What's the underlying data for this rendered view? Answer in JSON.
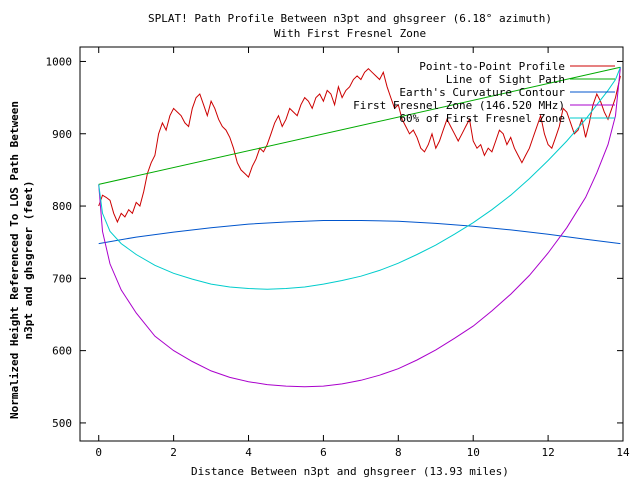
{
  "chart_data": {
    "type": "line",
    "title": "SPLAT! Path Profile Between n3pt and ghsgreer (6.18° azimuth)",
    "subtitle": "With First Fresnel Zone",
    "xlabel": "Distance Between n3pt and ghsgreer (13.93 miles)",
    "ylabel": "Normalized Height Referenced To LOS Path Between",
    "ylabel2": "n3pt and ghsgreer (feet)",
    "xlim": [
      -0.5,
      14
    ],
    "ylim": [
      475,
      1020
    ],
    "xticks": [
      "0",
      "2",
      "4",
      "6",
      "8",
      "10",
      "12",
      "14"
    ],
    "yticks": [
      "500",
      "600",
      "700",
      "800",
      "900",
      "1000"
    ],
    "xtick_values": [
      0,
      2,
      4,
      6,
      8,
      10,
      12,
      14
    ],
    "ytick_values": [
      500,
      600,
      700,
      800,
      900,
      1000
    ],
    "legend_position": "top-right",
    "grid": false,
    "series": [
      {
        "name": "Point-to-Point Profile",
        "color": "#cc0000",
        "x": [
          0,
          0.1,
          0.2,
          0.3,
          0.4,
          0.5,
          0.6,
          0.7,
          0.8,
          0.9,
          1.0,
          1.1,
          1.2,
          1.3,
          1.4,
          1.5,
          1.6,
          1.7,
          1.8,
          1.9,
          2.0,
          2.1,
          2.2,
          2.3,
          2.4,
          2.5,
          2.6,
          2.7,
          2.8,
          2.9,
          3.0,
          3.1,
          3.2,
          3.3,
          3.4,
          3.5,
          3.6,
          3.7,
          3.8,
          3.9,
          4.0,
          4.1,
          4.2,
          4.3,
          4.4,
          4.5,
          4.6,
          4.7,
          4.8,
          4.9,
          5.0,
          5.1,
          5.2,
          5.3,
          5.4,
          5.5,
          5.6,
          5.7,
          5.8,
          5.9,
          6.0,
          6.1,
          6.2,
          6.3,
          6.4,
          6.5,
          6.6,
          6.7,
          6.8,
          6.9,
          7.0,
          7.1,
          7.2,
          7.3,
          7.4,
          7.5,
          7.6,
          7.7,
          7.8,
          7.9,
          8.0,
          8.1,
          8.2,
          8.3,
          8.4,
          8.5,
          8.6,
          8.7,
          8.8,
          8.9,
          9.0,
          9.1,
          9.2,
          9.3,
          9.4,
          9.5,
          9.6,
          9.7,
          9.8,
          9.9,
          10.0,
          10.1,
          10.2,
          10.3,
          10.4,
          10.5,
          10.6,
          10.7,
          10.8,
          10.9,
          11.0,
          11.1,
          11.2,
          11.3,
          11.4,
          11.5,
          11.6,
          11.7,
          11.8,
          11.9,
          12.0,
          12.1,
          12.2,
          12.3,
          12.4,
          12.5,
          12.6,
          12.7,
          12.8,
          12.9,
          13.0,
          13.1,
          13.2,
          13.3,
          13.4,
          13.5,
          13.6,
          13.7,
          13.8,
          13.93
        ],
        "values": [
          800,
          815,
          812,
          808,
          790,
          778,
          790,
          785,
          795,
          790,
          805,
          800,
          820,
          845,
          860,
          870,
          900,
          915,
          905,
          925,
          935,
          930,
          925,
          915,
          910,
          935,
          950,
          955,
          940,
          925,
          945,
          935,
          920,
          910,
          905,
          895,
          880,
          860,
          850,
          845,
          840,
          855,
          865,
          880,
          875,
          885,
          900,
          915,
          925,
          910,
          920,
          935,
          930,
          925,
          940,
          950,
          945,
          935,
          950,
          955,
          945,
          960,
          955,
          940,
          965,
          950,
          960,
          965,
          975,
          980,
          975,
          985,
          990,
          985,
          980,
          975,
          985,
          965,
          950,
          935,
          940,
          920,
          910,
          900,
          905,
          895,
          880,
          875,
          885,
          900,
          880,
          890,
          905,
          920,
          910,
          900,
          890,
          900,
          910,
          920,
          890,
          880,
          885,
          870,
          880,
          875,
          890,
          905,
          900,
          885,
          895,
          880,
          870,
          860,
          870,
          880,
          895,
          910,
          925,
          900,
          885,
          880,
          895,
          910,
          935,
          930,
          915,
          900,
          905,
          920,
          895,
          915,
          940,
          955,
          945,
          930,
          920,
          935,
          950,
          980
        ]
      },
      {
        "name": "Line of Sight Path",
        "color": "#00aa00",
        "x": [
          0,
          13.93
        ],
        "values": [
          830,
          992
        ]
      },
      {
        "name": "Earth's Curvature Contour",
        "color": "#0055cc",
        "x": [
          0,
          1,
          2,
          3,
          4,
          5,
          6,
          7,
          8,
          9,
          10,
          11,
          12,
          13,
          13.93
        ],
        "values": [
          748,
          757,
          764,
          770,
          775,
          778,
          780,
          780,
          779,
          776,
          772,
          767,
          761,
          754,
          748
        ]
      },
      {
        "name": "First Fresnel Zone (146.520 MHz)",
        "color": "#aa00cc",
        "x": [
          0,
          0.1,
          0.3,
          0.6,
          1,
          1.5,
          2,
          2.5,
          3,
          3.5,
          4,
          4.5,
          5,
          5.5,
          6,
          6.5,
          7,
          7.5,
          8,
          8.5,
          9,
          9.5,
          10,
          10.5,
          11,
          11.5,
          12,
          12.5,
          13,
          13.3,
          13.6,
          13.8,
          13.93
        ],
        "values": [
          830,
          765,
          720,
          684,
          652,
          620,
          600,
          585,
          572,
          563,
          557,
          553,
          551,
          550,
          551,
          554,
          559,
          566,
          575,
          587,
          601,
          617,
          634,
          655,
          678,
          704,
          735,
          770,
          812,
          846,
          885,
          925,
          992
        ]
      },
      {
        "name": "60% of First Fresnel Zone",
        "color": "#00cccc",
        "x": [
          0,
          0.1,
          0.3,
          0.6,
          1,
          1.5,
          2,
          2.5,
          3,
          3.5,
          4,
          4.5,
          5,
          5.5,
          6,
          6.5,
          7,
          7.5,
          8,
          8.5,
          9,
          9.5,
          10,
          10.5,
          11,
          11.5,
          12,
          12.5,
          13,
          13.3,
          13.6,
          13.8,
          13.93
        ],
        "values": [
          830,
          790,
          765,
          748,
          733,
          718,
          707,
          699,
          692,
          688,
          686,
          685,
          686,
          688,
          692,
          697,
          703,
          711,
          721,
          733,
          746,
          761,
          777,
          795,
          815,
          838,
          863,
          890,
          920,
          940,
          960,
          975,
          992
        ]
      }
    ]
  }
}
